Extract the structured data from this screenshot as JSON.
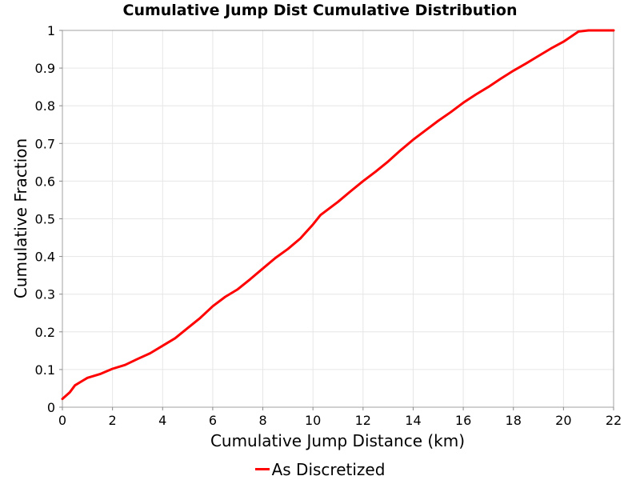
{
  "chart_data": {
    "type": "line",
    "title": "Cumulative Jump Dist Cumulative Distribution",
    "xlabel": "Cumulative Jump Distance (km)",
    "ylabel": "Cumulative Fraction",
    "xlim": [
      0,
      22
    ],
    "ylim": [
      0,
      1
    ],
    "xticks": [
      "0",
      "2",
      "4",
      "6",
      "8",
      "10",
      "12",
      "14",
      "16",
      "18",
      "20",
      "22"
    ],
    "yticks": [
      "0",
      "0.1",
      "0.2",
      "0.3",
      "0.4",
      "0.5",
      "0.6",
      "0.7",
      "0.8",
      "0.9",
      "1"
    ],
    "grid": true,
    "legend_position": "bottom-center",
    "series": [
      {
        "name": "As Discretized",
        "color": "#ff0000",
        "x": [
          0,
          0.3,
          0.5,
          0.8,
          1.0,
          1.5,
          2.0,
          2.5,
          3.0,
          3.5,
          4.0,
          4.5,
          5.0,
          5.5,
          6.0,
          6.5,
          7.0,
          7.5,
          8.0,
          8.5,
          9.0,
          9.5,
          10.0,
          10.3,
          11.0,
          11.5,
          12.0,
          12.5,
          13.0,
          13.5,
          14.0,
          14.5,
          15.0,
          15.5,
          16.0,
          16.5,
          17.0,
          17.5,
          18.0,
          18.5,
          19.0,
          19.5,
          20.0,
          20.6,
          21.0,
          22.0
        ],
        "y": [
          0.022,
          0.04,
          0.058,
          0.07,
          0.078,
          0.088,
          0.102,
          0.112,
          0.128,
          0.143,
          0.163,
          0.183,
          0.21,
          0.237,
          0.268,
          0.293,
          0.313,
          0.34,
          0.368,
          0.396,
          0.42,
          0.448,
          0.485,
          0.51,
          0.545,
          0.573,
          0.6,
          0.625,
          0.652,
          0.682,
          0.71,
          0.735,
          0.76,
          0.783,
          0.808,
          0.83,
          0.85,
          0.872,
          0.893,
          0.912,
          0.932,
          0.952,
          0.97,
          0.997,
          1.0,
          1.0
        ]
      }
    ]
  }
}
